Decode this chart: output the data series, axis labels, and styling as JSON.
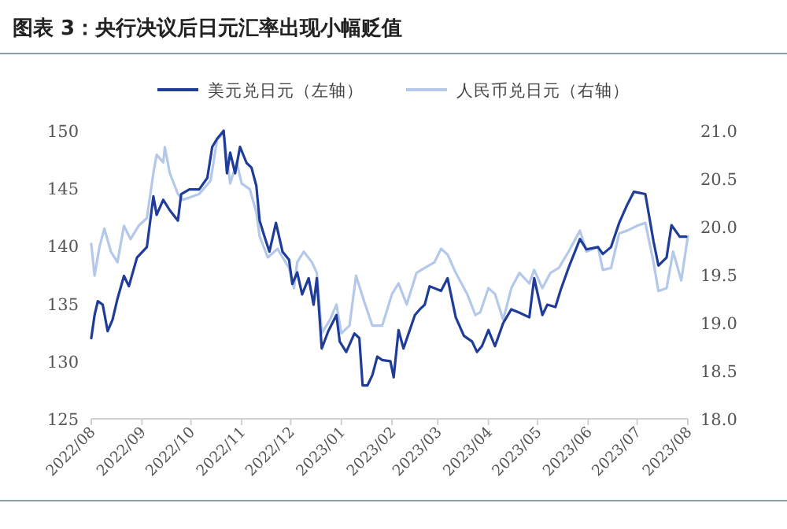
{
  "chart_data": {
    "type": "line",
    "title": "图表 3：央行决议后日元汇率出现小幅贬值",
    "legend": "top",
    "xlim": [
      "2022-08-01",
      "2023-08-01"
    ],
    "xticks": [
      {
        "value": "2022-08-01",
        "label": "2022/08"
      },
      {
        "value": "2022-09-01",
        "label": "2022/09"
      },
      {
        "value": "2022-10-01",
        "label": "2022/10"
      },
      {
        "value": "2022-11-01",
        "label": "2022/11"
      },
      {
        "value": "2022-12-01",
        "label": "2022/12"
      },
      {
        "value": "2023-01-01",
        "label": "2023/01"
      },
      {
        "value": "2023-02-01",
        "label": "2023/02"
      },
      {
        "value": "2023-03-01",
        "label": "2023/03"
      },
      {
        "value": "2023-04-01",
        "label": "2023/04"
      },
      {
        "value": "2023-05-01",
        "label": "2023/05"
      },
      {
        "value": "2023-06-01",
        "label": "2023/06"
      },
      {
        "value": "2023-07-01",
        "label": "2023/07"
      },
      {
        "value": "2023-08-01",
        "label": "2023/08"
      }
    ],
    "ylim": [
      125,
      150
    ],
    "yticks": [
      125,
      130,
      135,
      140,
      145,
      150
    ],
    "y2lim": [
      18,
      21
    ],
    "y2ticks": [
      {
        "value": 18,
        "label": "18.0"
      },
      {
        "value": 18.5,
        "label": "18.5"
      },
      {
        "value": 19,
        "label": "19.0"
      },
      {
        "value": 19.5,
        "label": "19.5"
      },
      {
        "value": 20,
        "label": "20.0"
      },
      {
        "value": 20.5,
        "label": "20.5"
      },
      {
        "value": 21,
        "label": "21.0"
      }
    ],
    "series": [
      {
        "name": "美元兑日元（左轴）",
        "color": "#1f3c99",
        "type": "line",
        "axis": "y",
        "x": [
          "2022-08-01",
          "2022-08-03",
          "2022-08-05",
          "2022-08-08",
          "2022-08-11",
          "2022-08-14",
          "2022-08-17",
          "2022-08-21",
          "2022-08-24",
          "2022-08-29",
          "2022-09-04",
          "2022-09-08",
          "2022-09-10",
          "2022-09-14",
          "2022-09-18",
          "2022-09-23",
          "2022-09-25",
          "2022-09-30",
          "2022-10-06",
          "2022-10-11",
          "2022-10-14",
          "2022-10-17",
          "2022-10-21",
          "2022-10-23",
          "2022-10-25",
          "2022-10-28",
          "2022-10-31",
          "2022-11-04",
          "2022-11-07",
          "2022-11-10",
          "2022-11-12",
          "2022-11-15",
          "2022-11-18",
          "2022-11-22",
          "2022-11-26",
          "2022-11-30",
          "2022-12-02",
          "2022-12-05",
          "2022-12-08",
          "2022-12-12",
          "2022-12-15",
          "2022-12-17",
          "2022-12-20",
          "2022-12-24",
          "2022-12-29",
          "2022-12-31",
          "2023-01-04",
          "2023-01-09",
          "2023-01-12",
          "2023-01-14",
          "2023-01-17",
          "2023-01-20",
          "2023-01-23",
          "2023-01-26",
          "2023-01-31",
          "2023-02-02",
          "2023-02-05",
          "2023-02-08",
          "2023-02-15",
          "2023-02-18",
          "2023-02-21",
          "2023-02-24",
          "2023-03-03",
          "2023-03-07",
          "2023-03-12",
          "2023-03-17",
          "2023-03-22",
          "2023-03-25",
          "2023-03-28",
          "2023-04-01",
          "2023-04-05",
          "2023-04-10",
          "2023-04-15",
          "2023-04-20",
          "2023-04-26",
          "2023-04-29",
          "2023-05-04",
          "2023-05-07",
          "2023-05-12",
          "2023-05-15",
          "2023-05-20",
          "2023-05-27",
          "2023-05-31",
          "2023-06-07",
          "2023-06-10",
          "2023-06-15",
          "2023-06-20",
          "2023-06-25",
          "2023-06-29",
          "2023-07-06",
          "2023-07-11",
          "2023-07-14",
          "2023-07-19",
          "2023-07-22",
          "2023-07-27",
          "2023-07-31"
        ],
        "values": [
          132.0,
          134.0,
          135.2,
          134.9,
          132.6,
          133.6,
          135.4,
          137.4,
          136.5,
          139.0,
          139.9,
          144.3,
          142.7,
          144.0,
          143.1,
          142.2,
          144.5,
          144.9,
          144.9,
          145.9,
          148.6,
          149.3,
          150.0,
          146.3,
          148.1,
          146.3,
          148.6,
          147.2,
          146.8,
          145.2,
          142.2,
          140.8,
          139.5,
          142.0,
          139.5,
          138.8,
          136.7,
          137.7,
          135.8,
          137.2,
          134.9,
          137.2,
          131.1,
          132.6,
          134.0,
          131.7,
          130.8,
          132.4,
          132.0,
          127.9,
          127.9,
          128.8,
          130.4,
          130.1,
          130.0,
          128.6,
          132.7,
          131.1,
          134.0,
          134.5,
          134.9,
          136.5,
          136.1,
          137.2,
          133.8,
          132.2,
          131.7,
          130.8,
          131.3,
          132.7,
          131.3,
          133.3,
          134.5,
          134.2,
          133.8,
          137.2,
          134.0,
          134.9,
          134.7,
          136.1,
          138.1,
          140.6,
          139.7,
          139.9,
          139.3,
          139.9,
          142.0,
          143.6,
          144.7,
          144.5,
          140.4,
          138.3,
          139.0,
          141.8,
          140.8,
          140.8
        ]
      },
      {
        "name": "人民币兑日元（右轴）",
        "color": "#b4c8ea",
        "type": "line",
        "axis": "y2",
        "x": [
          "2022-08-01",
          "2022-08-03",
          "2022-08-06",
          "2022-08-09",
          "2022-08-13",
          "2022-08-17",
          "2022-08-21",
          "2022-08-25",
          "2022-08-30",
          "2022-09-04",
          "2022-09-08",
          "2022-09-10",
          "2022-09-14",
          "2022-09-15",
          "2022-09-18",
          "2022-09-23",
          "2022-09-26",
          "2022-10-01",
          "2022-10-06",
          "2022-10-13",
          "2022-10-17",
          "2022-10-21",
          "2022-10-25",
          "2022-10-29",
          "2022-11-01",
          "2022-11-06",
          "2022-11-10",
          "2022-11-12",
          "2022-11-17",
          "2022-11-23",
          "2022-11-30",
          "2022-12-03",
          "2022-12-05",
          "2022-12-09",
          "2022-12-14",
          "2022-12-17",
          "2022-12-20",
          "2022-12-25",
          "2022-12-29",
          "2023-01-01",
          "2023-01-06",
          "2023-01-10",
          "2023-01-15",
          "2023-01-20",
          "2023-01-26",
          "2023-02-01",
          "2023-02-05",
          "2023-02-10",
          "2023-02-16",
          "2023-02-21",
          "2023-02-27",
          "2023-03-03",
          "2023-03-07",
          "2023-03-12",
          "2023-03-19",
          "2023-03-24",
          "2023-03-27",
          "2023-04-01",
          "2023-04-05",
          "2023-04-10",
          "2023-04-15",
          "2023-04-20",
          "2023-04-26",
          "2023-04-29",
          "2023-05-04",
          "2023-05-09",
          "2023-05-14",
          "2023-05-20",
          "2023-05-27",
          "2023-05-31",
          "2023-06-07",
          "2023-06-10",
          "2023-06-15",
          "2023-06-20",
          "2023-06-25",
          "2023-07-01",
          "2023-07-06",
          "2023-07-11",
          "2023-07-14",
          "2023-07-19",
          "2023-07-23",
          "2023-07-28",
          "2023-08-01"
        ],
        "values": [
          19.82,
          19.49,
          19.79,
          19.98,
          19.74,
          19.63,
          20.01,
          19.87,
          20.01,
          20.09,
          20.56,
          20.75,
          20.67,
          20.83,
          20.56,
          20.34,
          20.28,
          20.31,
          20.34,
          20.48,
          20.91,
          20.97,
          20.45,
          20.67,
          20.45,
          20.39,
          20.15,
          19.9,
          19.68,
          19.77,
          19.57,
          19.36,
          19.63,
          19.74,
          19.63,
          19.52,
          18.89,
          19.03,
          19.19,
          18.89,
          18.97,
          19.49,
          19.22,
          18.97,
          18.97,
          19.3,
          19.41,
          19.19,
          19.52,
          19.57,
          19.63,
          19.77,
          19.71,
          19.52,
          19.3,
          19.08,
          19.11,
          19.36,
          19.3,
          19.03,
          19.36,
          19.52,
          19.41,
          19.55,
          19.36,
          19.52,
          19.57,
          19.74,
          19.96,
          19.74,
          19.79,
          19.55,
          19.57,
          19.93,
          19.96,
          20.01,
          20.04,
          19.63,
          19.33,
          19.36,
          19.74,
          19.44,
          19.9
        ]
      }
    ]
  }
}
